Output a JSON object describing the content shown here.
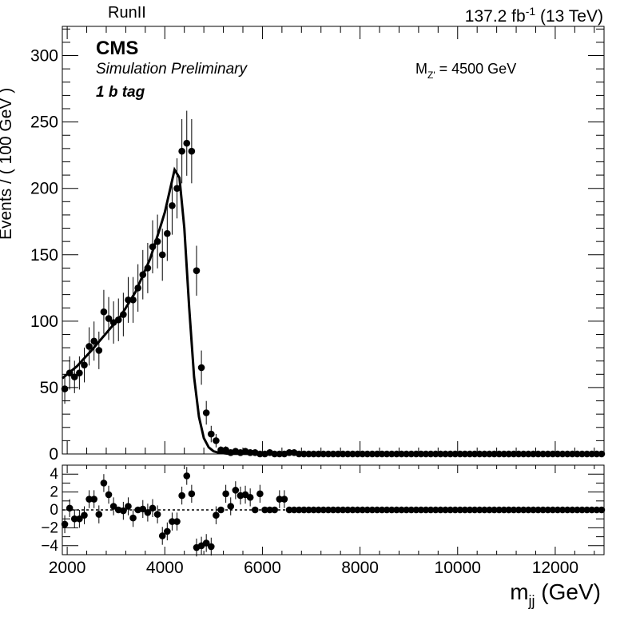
{
  "header": {
    "run_label": "RunII",
    "lumi_value": "137.2 fb",
    "lumi_exp": "-1",
    "energy": "(13 TeV)"
  },
  "annotations": {
    "experiment": "CMS",
    "status": "Simulation Preliminary",
    "category": "1 b tag",
    "mass_base": "M",
    "mass_sub": "Z'",
    "mass_value": " = 4500 GeV"
  },
  "axes": {
    "ylabel": "Events / ( 100 GeV )",
    "xlabel_base": "m",
    "xlabel_sub": "jj",
    "xlabel_unit": " (GeV)"
  },
  "chart_data": [
    {
      "type": "scatter",
      "panel": "main",
      "xlim": [
        1900,
        13000
      ],
      "ylim": [
        0,
        322
      ],
      "x_ticks": [
        2000,
        4000,
        6000,
        8000,
        10000,
        12000
      ],
      "y_ticks": [
        0,
        50,
        100,
        150,
        200,
        250,
        300
      ],
      "series": [
        {
          "style": "points-with-errors",
          "x": [
            1950,
            2050,
            2150,
            2250,
            2350,
            2450,
            2550,
            2650,
            2750,
            2850,
            2950,
            3050,
            3150,
            3250,
            3350,
            3450,
            3550,
            3650,
            3750,
            3850,
            3950,
            4050,
            4150,
            4250,
            4350,
            4450,
            4550,
            4650,
            4750,
            4850,
            4950,
            5050,
            5150,
            5250,
            5350,
            5450,
            5550,
            5650,
            5750,
            5850,
            5950,
            6050,
            6150,
            6250,
            6350,
            6450,
            6550,
            6650
          ],
          "y": [
            49,
            61,
            58,
            61,
            67,
            81,
            85,
            78,
            107,
            102,
            99,
            101,
            105,
            116,
            116,
            125,
            135,
            140,
            156,
            160,
            150,
            166,
            187,
            200,
            228,
            234,
            228,
            138,
            65,
            31,
            15,
            10,
            3,
            3,
            1,
            2,
            1,
            2,
            1,
            1,
            0,
            0,
            1,
            0,
            0,
            0,
            1,
            1
          ]
        },
        {
          "style": "curve",
          "x": [
            1900,
            2200,
            2500,
            2800,
            3100,
            3400,
            3700,
            3900,
            4000,
            4100,
            4200,
            4300,
            4400,
            4500,
            4600,
            4700,
            4800,
            4900,
            5000,
            5100,
            5300,
            6000,
            13000
          ],
          "y": [
            57,
            66,
            78,
            91,
            104,
            122,
            147,
            170,
            182,
            198,
            214,
            208,
            170,
            110,
            58,
            28,
            12,
            5,
            2,
            1,
            0.2,
            0.05,
            0
          ]
        }
      ]
    },
    {
      "type": "scatter",
      "panel": "pull",
      "xlim": [
        1900,
        13000
      ],
      "ylim": [
        -5,
        5
      ],
      "x_ticks": [
        2000,
        4000,
        6000,
        8000,
        10000,
        12000
      ],
      "y_ticks": [
        -4,
        -2,
        0,
        2,
        4
      ],
      "reference_line": 0,
      "x": [
        1950,
        2050,
        2150,
        2250,
        2350,
        2450,
        2550,
        2650,
        2750,
        2850,
        2950,
        3050,
        3150,
        3250,
        3350,
        3450,
        3550,
        3650,
        3750,
        3850,
        3950,
        4050,
        4150,
        4250,
        4350,
        4450,
        4550,
        4650,
        4750,
        4850,
        4950,
        5050,
        5150,
        5250,
        5350,
        5450,
        5550,
        5650,
        5750,
        5850,
        5950,
        6050,
        6150,
        6250,
        6350,
        6450,
        6550,
        6650
      ],
      "y": [
        -1.6,
        0.2,
        -1.0,
        -1.0,
        -0.6,
        1.2,
        1.2,
        -0.5,
        3.0,
        1.7,
        0.4,
        0.0,
        -0.1,
        0.4,
        -0.9,
        0.0,
        0.1,
        -0.3,
        0.2,
        -0.5,
        -2.9,
        -2.4,
        -1.3,
        -1.3,
        1.6,
        3.8,
        1.8,
        -4.2,
        -4.0,
        -3.7,
        -4.1,
        -0.6,
        0.0,
        1.8,
        0.4,
        2.2,
        1.6,
        1.7,
        1.4,
        0.0,
        1.8,
        0.0,
        0.0,
        0.0,
        1.2,
        1.2,
        0.0,
        0.0
      ]
    }
  ]
}
